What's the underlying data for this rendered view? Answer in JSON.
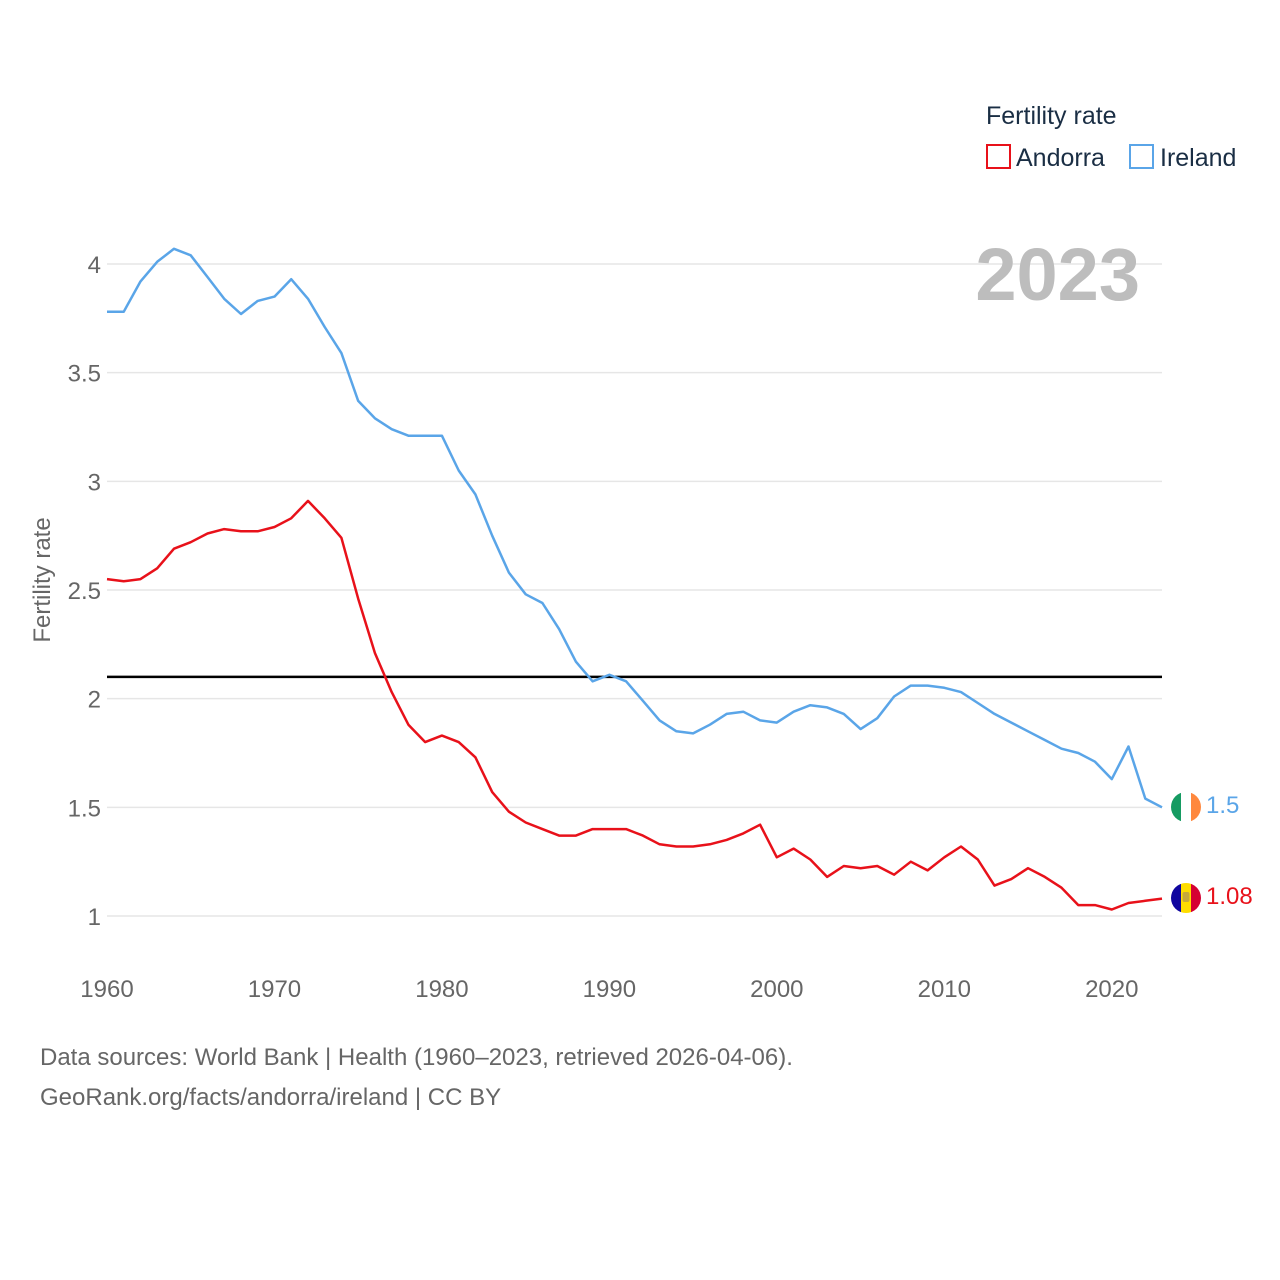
{
  "chart_data": {
    "type": "line",
    "title": "",
    "year_label": "2023",
    "xlabel": "",
    "ylabel": "Fertility rate",
    "legend_title": "Fertility rate",
    "legend_position": "top-right",
    "xlim": [
      1960,
      2023
    ],
    "ylim": [
      0.8,
      4.2
    ],
    "x_ticks": [
      1960,
      1970,
      1980,
      1990,
      2000,
      2010,
      2020
    ],
    "y_ticks": [
      1,
      1.5,
      2,
      2.5,
      3,
      3.5,
      4
    ],
    "reference_line": {
      "y": 2.1,
      "color": "#000000"
    },
    "x": [
      1960,
      1961,
      1962,
      1963,
      1964,
      1965,
      1966,
      1967,
      1968,
      1969,
      1970,
      1971,
      1972,
      1973,
      1974,
      1975,
      1976,
      1977,
      1978,
      1979,
      1980,
      1981,
      1982,
      1983,
      1984,
      1985,
      1986,
      1987,
      1988,
      1989,
      1990,
      1991,
      1992,
      1993,
      1994,
      1995,
      1996,
      1997,
      1998,
      1999,
      2000,
      2001,
      2002,
      2003,
      2004,
      2005,
      2006,
      2007,
      2008,
      2009,
      2010,
      2011,
      2012,
      2013,
      2014,
      2015,
      2016,
      2017,
      2018,
      2019,
      2020,
      2021,
      2022,
      2023
    ],
    "series": [
      {
        "name": "Andorra",
        "color": "#e8111a",
        "flag": "andorra-flag",
        "end_label": "1.08",
        "values": [
          2.55,
          2.54,
          2.55,
          2.6,
          2.69,
          2.72,
          2.76,
          2.78,
          2.77,
          2.77,
          2.79,
          2.83,
          2.91,
          2.83,
          2.74,
          2.46,
          2.21,
          2.03,
          1.88,
          1.8,
          1.83,
          1.8,
          1.73,
          1.57,
          1.48,
          1.43,
          1.4,
          1.37,
          1.37,
          1.4,
          1.4,
          1.4,
          1.37,
          1.33,
          1.32,
          1.32,
          1.33,
          1.35,
          1.38,
          1.42,
          1.27,
          1.31,
          1.26,
          1.18,
          1.23,
          1.22,
          1.23,
          1.19,
          1.25,
          1.21,
          1.27,
          1.32,
          1.26,
          1.14,
          1.17,
          1.22,
          1.18,
          1.13,
          1.05,
          1.05,
          1.03,
          1.06,
          1.07,
          1.08
        ]
      },
      {
        "name": "Ireland",
        "color": "#5aa5e8",
        "flag": "ireland-flag",
        "end_label": "1.5",
        "values": [
          3.78,
          3.78,
          3.92,
          4.01,
          4.07,
          4.04,
          3.94,
          3.84,
          3.77,
          3.83,
          3.85,
          3.93,
          3.84,
          3.71,
          3.59,
          3.37,
          3.29,
          3.24,
          3.21,
          3.21,
          3.21,
          3.05,
          2.94,
          2.75,
          2.58,
          2.48,
          2.44,
          2.32,
          2.17,
          2.08,
          2.11,
          2.08,
          1.99,
          1.9,
          1.85,
          1.84,
          1.88,
          1.93,
          1.94,
          1.9,
          1.89,
          1.94,
          1.97,
          1.96,
          1.93,
          1.86,
          1.91,
          2.01,
          2.06,
          2.06,
          2.05,
          2.03,
          1.98,
          1.93,
          1.89,
          1.85,
          1.81,
          1.77,
          1.75,
          1.71,
          1.63,
          1.78,
          1.54,
          1.5
        ]
      }
    ]
  },
  "footer": {
    "source_line": "Data sources: World Bank | Health (1960–2023, retrieved 2026-04-06).",
    "credit_line": "GeoRank.org/facts/andorra/ireland | CC BY"
  }
}
